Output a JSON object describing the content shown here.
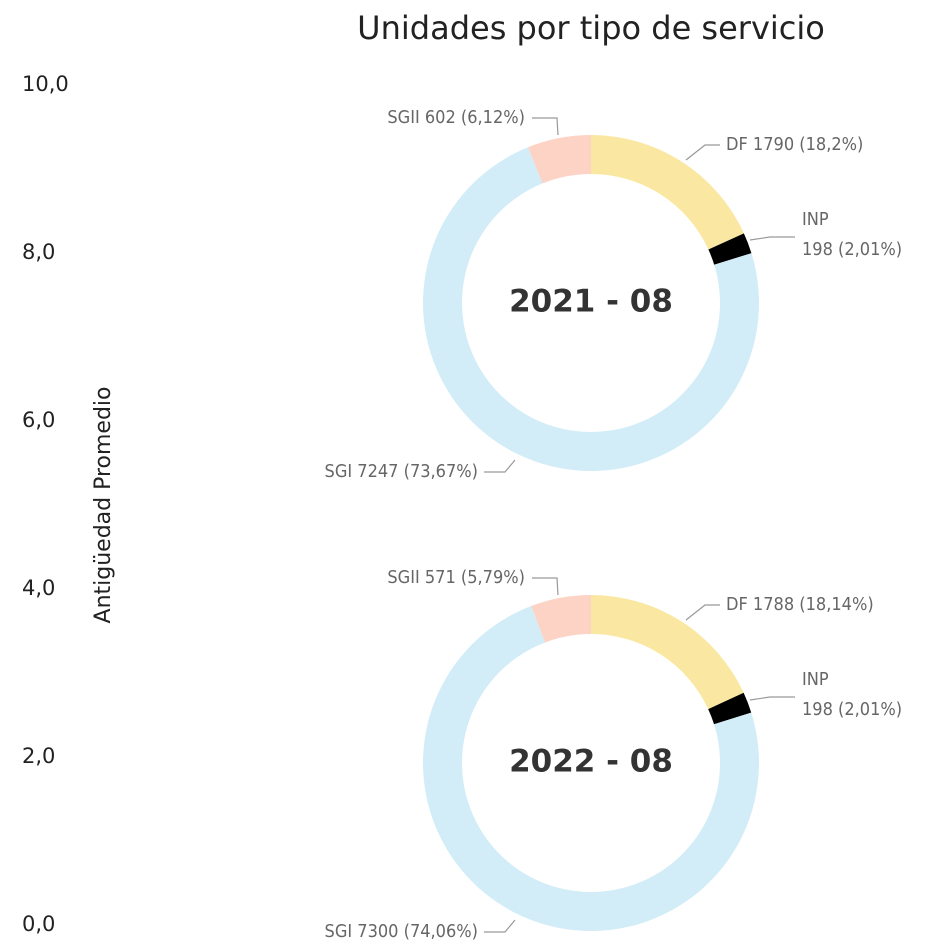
{
  "title": "Unidades por tipo de servicio",
  "chart_data": [
    {
      "type": "axis",
      "ylabel": "Antigüedad Promedio",
      "ylim": [
        0,
        10
      ],
      "yticks": [
        {
          "value": 0,
          "label": "0,0"
        },
        {
          "value": 2,
          "label": "2,0"
        },
        {
          "value": 4,
          "label": "4,0"
        },
        {
          "value": 6,
          "label": "6,0"
        },
        {
          "value": 8,
          "label": "8,0"
        },
        {
          "value": 10,
          "label": "10,0"
        }
      ]
    },
    {
      "type": "donut",
      "center_label": "2021 - 08",
      "values": [
        1790,
        198,
        7247,
        602
      ],
      "value_labels": [
        [
          "DF 1790 (18,2%)"
        ],
        [
          "INP",
          "198 (2,01%)"
        ],
        [
          "SGI 7247 (73,67%)"
        ],
        [
          "SGII 602 (6,12%)"
        ]
      ],
      "colors": [
        "#fae8a2",
        "#000000",
        "#d2edf7",
        "#fdd3c5"
      ]
    },
    {
      "type": "donut",
      "center_label": "2022 - 08",
      "values": [
        1788,
        198,
        7300,
        571
      ],
      "value_labels": [
        [
          "DF 1788 (18,14%)"
        ],
        [
          "INP",
          "198 (2,01%)"
        ],
        [
          "SGI 7300 (74,06%)"
        ],
        [
          "SGII 571 (5,79%)"
        ]
      ],
      "colors": [
        "#fae8a2",
        "#000000",
        "#d2edf7",
        "#fdd3c5"
      ]
    }
  ]
}
